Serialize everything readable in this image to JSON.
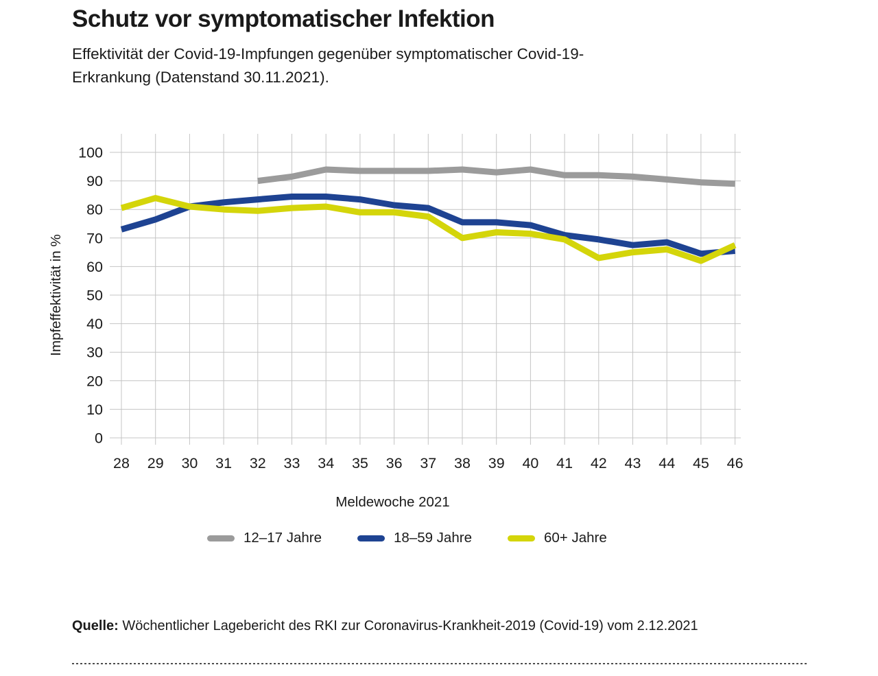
{
  "page": {
    "title": "Schutz vor symptomatischer Infektion",
    "subtitle": "Effektivität der Covid-19-Impfungen gegenüber symptomatischer Covid-19-Erkrankung (Datenstand 30.11.2021).",
    "source_label": "Quelle:",
    "source_text": " Wöchentlicher Lagebericht des RKI zur Coronavirus-Krankheit-2019 (Covid-19) vom 2.12.2021"
  },
  "chart_data": {
    "type": "line",
    "title": "Schutz vor symptomatischer Infektion",
    "xlabel": "Meldewoche 2021",
    "ylabel": "Impfeffektivität in %",
    "x": [
      28,
      29,
      30,
      31,
      32,
      33,
      34,
      35,
      36,
      37,
      38,
      39,
      40,
      41,
      42,
      43,
      44,
      45,
      46
    ],
    "ylim": [
      0,
      100
    ],
    "y_step": 10,
    "grid": true,
    "legend_position": "bottom",
    "series": [
      {
        "name": "12–17 Jahre",
        "color": "#9b9b9b",
        "values": [
          null,
          null,
          null,
          null,
          90,
          91.5,
          94,
          93.5,
          93.5,
          93.5,
          94,
          93,
          94,
          92,
          92,
          91.5,
          90.5,
          89.5,
          89
        ]
      },
      {
        "name": "18–59 Jahre",
        "color": "#1e4392",
        "values": [
          73,
          76.5,
          81,
          82.5,
          83.5,
          84.5,
          84.5,
          83.5,
          81.5,
          80.5,
          75.5,
          75.5,
          74.5,
          71,
          69.5,
          67.5,
          68.5,
          64.5,
          65.5
        ]
      },
      {
        "name": "60+ Jahre",
        "color": "#d4d50a",
        "values": [
          80.5,
          84,
          81,
          80,
          79.5,
          80.5,
          81,
          79,
          79,
          77.5,
          70,
          72,
          71.5,
          69.5,
          63,
          65,
          66,
          62,
          67.5
        ]
      }
    ]
  }
}
